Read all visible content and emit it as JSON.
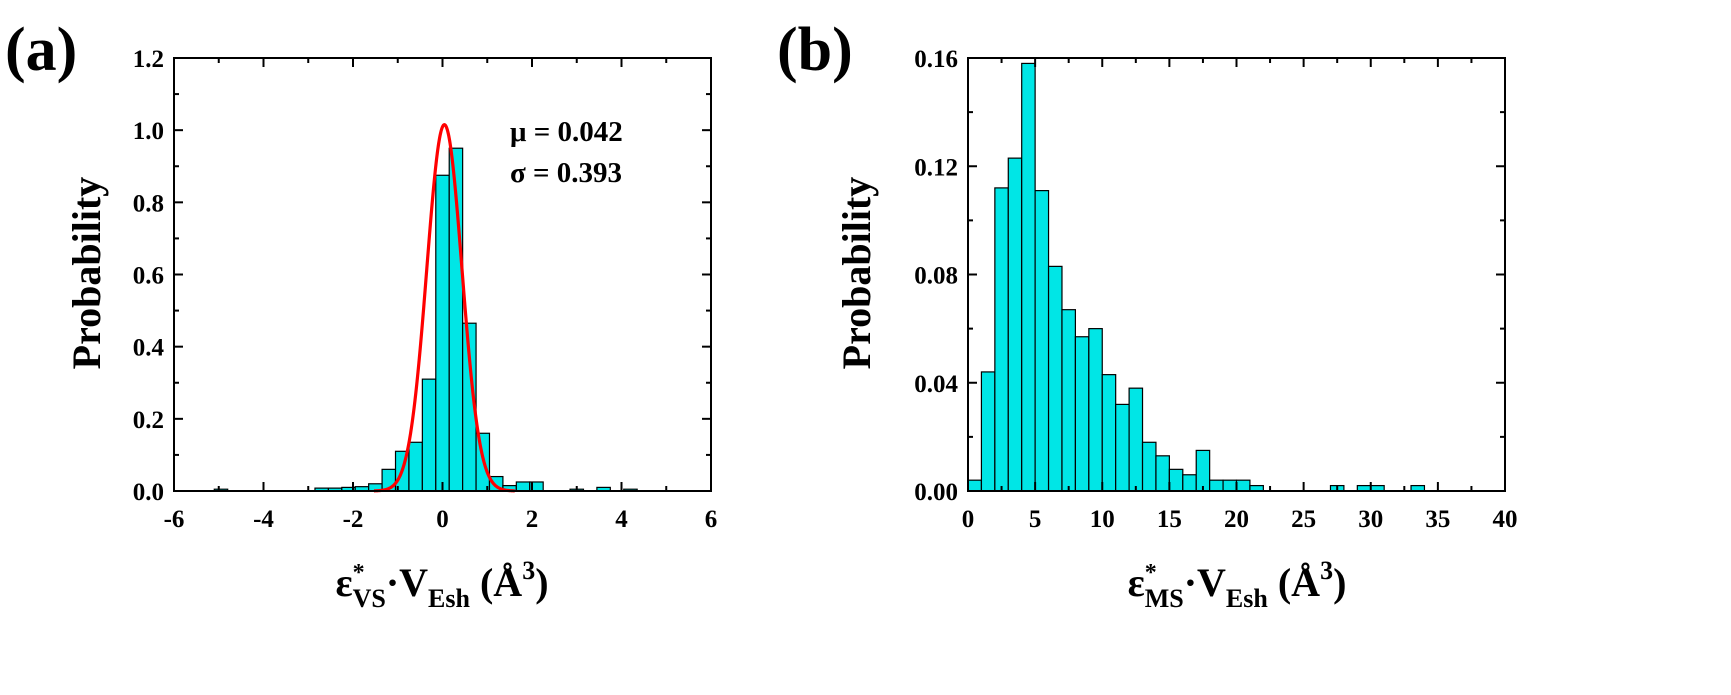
{
  "chart_data": [
    {
      "type": "bar",
      "panel_label": "(a)",
      "ylabel": "Probability",
      "xlabel": {
        "symbol": "ε",
        "sup": "*",
        "sub": "VS",
        "dot": "·",
        "v": "V",
        "vsub": "Esh",
        "unit_open": " (Å",
        "unit_sup": "3",
        "unit_close": ")"
      },
      "xlim": [
        -6,
        6
      ],
      "ylim": [
        0,
        1.2
      ],
      "xticks": [
        -6,
        -4,
        -2,
        0,
        2,
        4,
        6
      ],
      "xtick_labels": [
        "-6",
        "-4",
        "-2",
        "0",
        "2",
        "4",
        "6"
      ],
      "yticks": [
        0,
        0.2,
        0.4,
        0.6,
        0.8,
        1.0,
        1.2
      ],
      "ytick_labels": [
        "0.0",
        "0.2",
        "0.4",
        "0.6",
        "0.8",
        "1.0",
        "1.2"
      ],
      "bin_width": 0.3,
      "bin_left_edges": [
        -5.1,
        -2.85,
        -2.55,
        -2.25,
        -1.95,
        -1.65,
        -1.35,
        -1.05,
        -0.75,
        -0.45,
        -0.15,
        0.15,
        0.45,
        0.75,
        1.05,
        1.35,
        1.65,
        1.95,
        2.85,
        3.45,
        4.05
      ],
      "values": [
        0.005,
        0.008,
        0.008,
        0.01,
        0.012,
        0.02,
        0.06,
        0.11,
        0.135,
        0.31,
        0.875,
        0.95,
        0.465,
        0.16,
        0.04,
        0.015,
        0.025,
        0.025,
        0.005,
        0.01,
        0.005
      ],
      "annotations": [
        "μ = 0.042",
        "σ = 0.393"
      ],
      "fit": {
        "mu": 0.042,
        "sigma": 0.393,
        "color": "#ff0000"
      },
      "bar_color": "#00e6e6"
    },
    {
      "type": "bar",
      "panel_label": "(b)",
      "ylabel": "Probability",
      "xlabel": {
        "symbol": "ε",
        "sup": "*",
        "sub": "MS",
        "dot": "·",
        "v": "V",
        "vsub": "Esh",
        "unit_open": " (Å",
        "unit_sup": "3",
        "unit_close": ")"
      },
      "xlim": [
        0,
        40
      ],
      "ylim": [
        0,
        0.16
      ],
      "xticks": [
        0,
        5,
        10,
        15,
        20,
        25,
        30,
        35,
        40
      ],
      "xtick_labels": [
        "0",
        "5",
        "10",
        "15",
        "20",
        "25",
        "30",
        "35",
        "40"
      ],
      "yticks": [
        0,
        0.04,
        0.08,
        0.12,
        0.16
      ],
      "ytick_labels": [
        "0.00",
        "0.04",
        "0.08",
        "0.12",
        "0.16"
      ],
      "bin_width": 1,
      "bin_left_edges": [
        0,
        1,
        2,
        3,
        4,
        5,
        6,
        7,
        8,
        9,
        10,
        11,
        12,
        13,
        14,
        15,
        16,
        17,
        18,
        19,
        20,
        21,
        27,
        29,
        30,
        33
      ],
      "values": [
        0.004,
        0.044,
        0.112,
        0.123,
        0.158,
        0.111,
        0.083,
        0.067,
        0.057,
        0.06,
        0.043,
        0.032,
        0.038,
        0.018,
        0.013,
        0.008,
        0.006,
        0.015,
        0.004,
        0.004,
        0.004,
        0.002,
        0.002,
        0.002,
        0.002,
        0.002
      ],
      "annotations": [],
      "bar_color": "#00e6e6"
    }
  ]
}
